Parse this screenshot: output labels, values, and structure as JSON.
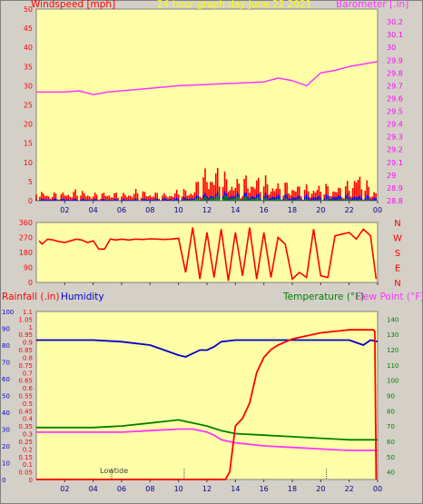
{
  "header": {
    "left_label": "Windspeed [mph]",
    "center_label": "24 hour graph day  June 22 2021",
    "right_label": "Barometer [.in]"
  },
  "lower_header": {
    "rain_label": "Rainfall (.in)",
    "humidity_label": "Humidity",
    "temp_label": "Temperature (°F)",
    "dew_label": "Dew Point (°F)"
  },
  "annotation": {
    "text": "Lowtide"
  },
  "colors": {
    "background": "#ffffa8",
    "frame": "#d4d0c8",
    "wind_avg": "#0000ff",
    "wind_gust": "#ff0000",
    "wind_low": "#008000",
    "barometer": "#ff33ff",
    "direction": "#ff0000",
    "rain": "#ff0000",
    "humidity": "#0000cc",
    "temperature": "#008000",
    "dewpoint": "#ff33ff",
    "left_axis": "#ff0000",
    "right_axis": "#ff00ff",
    "humidity_axis": "#0000cc",
    "temp_axis": "#008000",
    "title_yellow": "#ffff00"
  },
  "chart_data": [
    {
      "type": "line",
      "name": "wind_and_barometer",
      "x_ticks": [
        "02",
        "04",
        "06",
        "08",
        "10",
        "12",
        "14",
        "16",
        "18",
        "20",
        "22",
        "00"
      ],
      "y_left_ticks": [
        "0",
        "5",
        "10",
        "15",
        "20",
        "25",
        "30",
        "35",
        "40",
        "45",
        "50"
      ],
      "y_right_ticks": [
        "28.8",
        "28.9",
        "29",
        "29.1",
        "29.2",
        "29.3",
        "29.4",
        "29.5",
        "29.6",
        "29.7",
        "29.8",
        "29.9",
        "30",
        "30.1",
        "30.2"
      ],
      "ylim_left": [
        0,
        50
      ],
      "ylim_right": [
        28.8,
        30.3
      ],
      "barometer": {
        "x": [
          0,
          1,
          2,
          3,
          4,
          5,
          6,
          8,
          10,
          12,
          14,
          16,
          17,
          18,
          19,
          19.5,
          20,
          21,
          22,
          23,
          24
        ],
        "y": [
          29.65,
          29.65,
          29.65,
          29.66,
          29.63,
          29.65,
          29.66,
          29.68,
          29.7,
          29.71,
          29.72,
          29.73,
          29.76,
          29.74,
          29.7,
          29.75,
          29.8,
          29.82,
          29.85,
          29.87,
          29.89
        ]
      },
      "wind_gust": {
        "x": [
          0,
          1,
          2,
          3,
          4,
          5,
          6,
          7,
          8,
          9,
          10,
          11,
          11.5,
          12,
          12.5,
          13,
          14,
          15,
          16,
          17,
          18,
          19,
          20,
          21,
          22,
          22.5,
          23,
          23.5,
          24
        ],
        "y": [
          3,
          2,
          2.5,
          3,
          2,
          2.5,
          2,
          3,
          2.5,
          2,
          3,
          3.5,
          7,
          9,
          10,
          8,
          6,
          7,
          6.5,
          5,
          5,
          4,
          4.5,
          4,
          5,
          9,
          6,
          4,
          3
        ]
      },
      "wind_avg": {
        "x": [
          0,
          2,
          4,
          6,
          8,
          10,
          11,
          12,
          13,
          14,
          16,
          18,
          20,
          22,
          24
        ],
        "y": [
          0.6,
          0.6,
          0.5,
          0.5,
          0.6,
          0.8,
          1.2,
          2.2,
          2.5,
          2.3,
          2,
          1.6,
          1.5,
          1.8,
          1.2
        ]
      },
      "wind_low": {
        "x": [
          0,
          10,
          11,
          12,
          13,
          14,
          16,
          18,
          20,
          22,
          24
        ],
        "y": [
          0,
          0.1,
          0.5,
          1.2,
          1.4,
          1.2,
          0.8,
          0.5,
          0.4,
          0.6,
          0.2
        ]
      }
    },
    {
      "type": "scatter",
      "name": "wind_direction",
      "y_ticks": [
        "0",
        "90",
        "180",
        "270",
        "360"
      ],
      "compass": [
        "N",
        "W",
        "S",
        "E",
        "N"
      ],
      "ylim": [
        0,
        360
      ],
      "x": [
        0.2,
        0.4,
        0.8,
        1.2,
        1.6,
        2,
        2.4,
        2.8,
        3.2,
        3.6,
        4,
        4.4,
        4.8,
        5.2,
        5.6,
        6,
        6.5,
        7,
        7.5,
        8,
        8.5,
        9,
        9.5,
        10,
        10.5,
        11,
        11.5,
        12,
        12.5,
        13,
        13.5,
        14,
        14.5,
        15,
        15.5,
        16,
        16.5,
        17,
        17.5,
        18,
        18.5,
        19,
        19.5,
        20,
        20.5,
        21,
        21.5,
        22,
        22.5,
        23,
        23.5,
        23.9
      ],
      "y": [
        250,
        230,
        260,
        255,
        245,
        240,
        250,
        260,
        255,
        240,
        250,
        200,
        200,
        260,
        255,
        260,
        255,
        260,
        258,
        262,
        260,
        258,
        260,
        265,
        60,
        330,
        20,
        300,
        30,
        320,
        10,
        300,
        40,
        330,
        20,
        300,
        30,
        270,
        230,
        20,
        60,
        30,
        320,
        40,
        30,
        280,
        290,
        300,
        260,
        320,
        280,
        20
      ]
    },
    {
      "type": "line",
      "name": "rain_humidity_temperature",
      "y_left_ticks": [
        "0",
        "0.05",
        "0.1",
        "0.15",
        "0.2",
        "0.25",
        "0.3",
        "0.35",
        "0.4",
        "0.45",
        "0.5",
        "0.55",
        "0.6",
        "0.65",
        "0.7",
        "0.75",
        "0.8",
        "0.85",
        "0.9",
        "0.95",
        "1",
        "1.05",
        "1.1"
      ],
      "humidity_ticks": [
        "0",
        "10",
        "20",
        "30",
        "40",
        "50",
        "60",
        "70",
        "80",
        "90",
        "100"
      ],
      "temp_ticks": [
        "40",
        "50",
        "60",
        "70",
        "80",
        "90",
        "100",
        "110",
        "120",
        "130",
        "140"
      ],
      "ylim_rain": [
        0,
        1.1
      ],
      "ylim_humidity": [
        0,
        100
      ],
      "ylim_temp": [
        35,
        145
      ],
      "rainfall": {
        "x": [
          0,
          13,
          13.3,
          13.6,
          14,
          14.5,
          15,
          15.5,
          16,
          16.5,
          17,
          17.5,
          18,
          19,
          20,
          21,
          22,
          23,
          23.7,
          23.8,
          23.9
        ],
        "y": [
          0,
          0,
          0,
          0.05,
          0.35,
          0.4,
          0.5,
          0.7,
          0.8,
          0.85,
          0.88,
          0.9,
          0.92,
          0.94,
          0.96,
          0.97,
          0.98,
          0.98,
          0.98,
          0.97,
          0
        ]
      },
      "humidity": {
        "x": [
          0,
          2,
          4,
          6,
          8,
          9,
          10,
          10.5,
          11,
          11.5,
          12,
          12.5,
          13,
          14,
          16,
          18,
          20,
          22,
          23,
          23.5,
          24
        ],
        "y": [
          83,
          83,
          83,
          82,
          80,
          77,
          74,
          73,
          75,
          77,
          77,
          79,
          82,
          83,
          83,
          83,
          83,
          83,
          80,
          83,
          82
        ]
      },
      "temperature": {
        "x": [
          0,
          2,
          4,
          6,
          8,
          9,
          10,
          11,
          12,
          13,
          14,
          16,
          18,
          20,
          22,
          24
        ],
        "y": [
          69,
          69,
          69,
          70,
          72,
          73,
          74,
          72,
          70,
          67,
          65,
          64,
          63,
          62,
          61,
          61
        ]
      },
      "dewpoint": {
        "x": [
          0,
          2,
          4,
          6,
          8,
          10,
          11,
          12,
          12.5,
          13,
          14,
          16,
          18,
          20,
          22,
          24
        ],
        "y": [
          66,
          66,
          66,
          66,
          67,
          68,
          68,
          66,
          64,
          61,
          59,
          57,
          56,
          55,
          54,
          54
        ]
      },
      "tide_markers_x": [
        5.3,
        10.4,
        20.4
      ]
    }
  ]
}
